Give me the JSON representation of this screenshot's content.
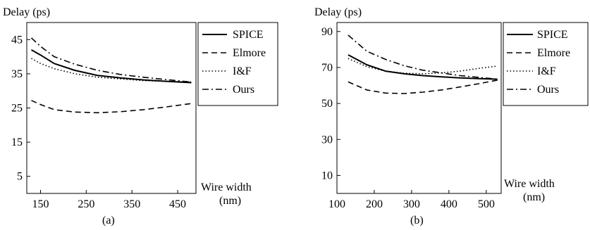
{
  "chart_data": [
    {
      "type": "line",
      "subcaption": "(a)",
      "ylabel": "Delay (ps)",
      "xlabel_line1": "Wire width",
      "xlabel_line2": "(nm)",
      "xlim": [
        120,
        490
      ],
      "ylim": [
        0,
        50
      ],
      "xticks": [
        150,
        250,
        350,
        450
      ],
      "yticks": [
        5,
        15,
        25,
        35,
        45
      ],
      "grid": false,
      "legend_position": "top-right-outside",
      "x": [
        130,
        150,
        180,
        225,
        275,
        325,
        375,
        425,
        480
      ],
      "series": [
        {
          "name": "SPICE",
          "style": "solid",
          "values": [
            42.0,
            40.5,
            38.0,
            36.0,
            34.5,
            33.8,
            33.2,
            32.8,
            32.4
          ]
        },
        {
          "name": "Elmore",
          "style": "dashed",
          "values": [
            27.2,
            26.0,
            24.5,
            23.8,
            23.6,
            23.9,
            24.5,
            25.3,
            26.3
          ]
        },
        {
          "name": "I&F",
          "style": "dotted",
          "values": [
            39.5,
            38.0,
            36.5,
            35.0,
            34.0,
            33.5,
            33.0,
            32.8,
            32.6
          ]
        },
        {
          "name": "Ours",
          "style": "dashdot",
          "values": [
            45.5,
            43.0,
            40.0,
            37.8,
            36.0,
            34.8,
            34.0,
            33.3,
            32.6
          ]
        }
      ]
    },
    {
      "type": "line",
      "subcaption": "(b)",
      "ylabel": "Delay (ps)",
      "xlabel_line1": "Wire width",
      "xlabel_line2": "(nm)",
      "xlim": [
        100,
        540
      ],
      "ylim": [
        0,
        95
      ],
      "xticks": [
        100,
        200,
        300,
        400,
        500
      ],
      "yticks": [
        10,
        30,
        50,
        70,
        90
      ],
      "grid": false,
      "legend_position": "top-right-outside",
      "x": [
        130,
        180,
        230,
        280,
        330,
        380,
        430,
        480,
        530
      ],
      "series": [
        {
          "name": "SPICE",
          "style": "solid",
          "values": [
            77.0,
            71.5,
            68.0,
            66.5,
            65.5,
            64.8,
            64.2,
            63.8,
            63.5
          ]
        },
        {
          "name": "Elmore",
          "style": "dashed",
          "values": [
            62.0,
            57.5,
            55.8,
            55.5,
            56.3,
            57.5,
            59.2,
            61.0,
            63.0
          ]
        },
        {
          "name": "I&F",
          "style": "dotted",
          "values": [
            75.0,
            70.5,
            68.0,
            66.8,
            66.5,
            67.0,
            68.0,
            69.5,
            70.8
          ]
        },
        {
          "name": "Ours",
          "style": "dashdot",
          "values": [
            88.0,
            79.0,
            74.5,
            71.0,
            68.5,
            67.0,
            65.5,
            64.5,
            63.5
          ]
        }
      ]
    }
  ]
}
